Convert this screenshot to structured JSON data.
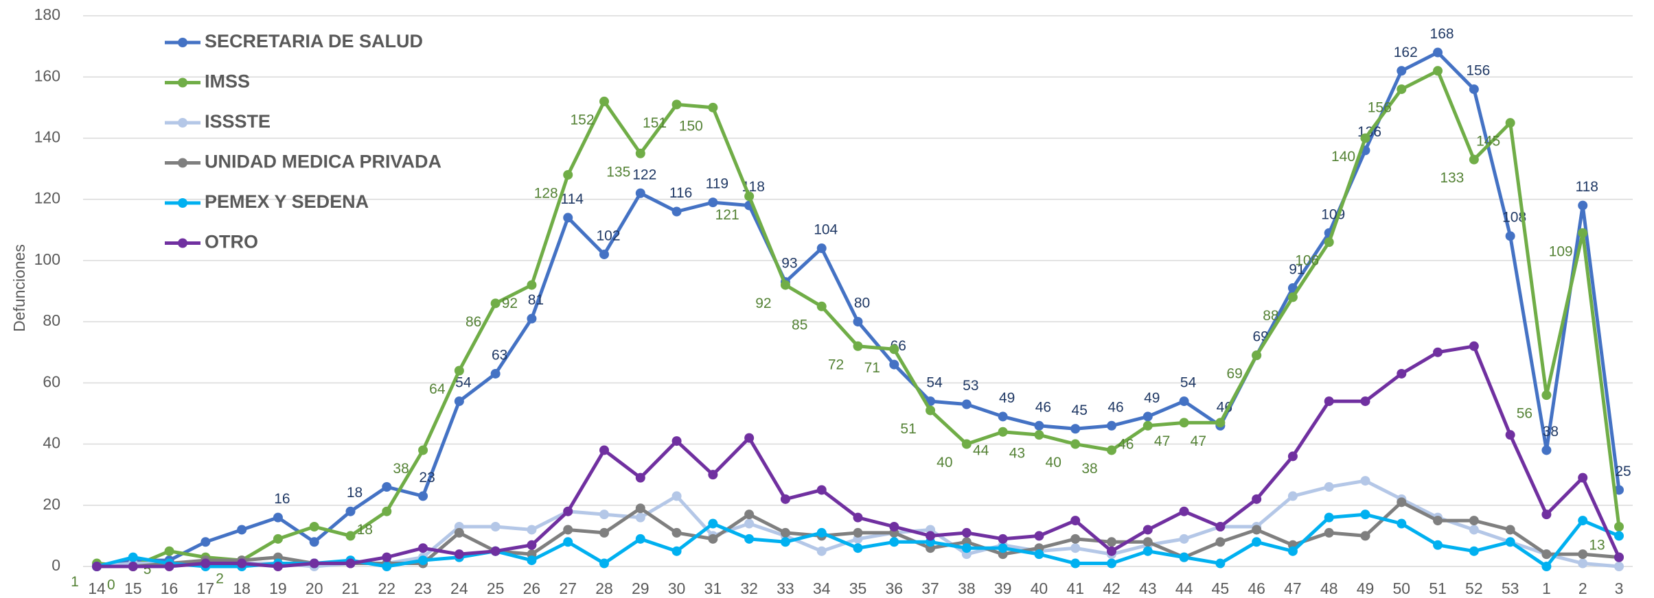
{
  "chart_data": {
    "type": "line",
    "y_label": "Defunciones",
    "categories": [
      "14",
      "15",
      "16",
      "17",
      "18",
      "19",
      "20",
      "21",
      "22",
      "23",
      "24",
      "25",
      "26",
      "27",
      "28",
      "29",
      "30",
      "31",
      "32",
      "33",
      "34",
      "35",
      "36",
      "37",
      "38",
      "39",
      "40",
      "41",
      "42",
      "43",
      "44",
      "45",
      "46",
      "47",
      "48",
      "49",
      "50",
      "51",
      "52",
      "53",
      "1",
      "2",
      "3"
    ],
    "ylim": [
      0,
      180
    ],
    "yticks": [
      0,
      20,
      40,
      60,
      80,
      100,
      120,
      140,
      160,
      180
    ],
    "grid": true,
    "legend": "upper left",
    "series": [
      {
        "name": "SECRETARIA DE SALUD",
        "color": "#4472c4",
        "values": [
          0,
          2,
          2,
          8,
          12,
          16,
          8,
          18,
          26,
          23,
          54,
          63,
          81,
          114,
          102,
          122,
          116,
          119,
          118,
          93,
          104,
          80,
          66,
          54,
          53,
          49,
          46,
          45,
          46,
          49,
          54,
          46,
          69,
          91,
          109,
          136,
          162,
          168,
          156,
          108,
          38,
          118,
          25
        ],
        "value_labels": [
          null,
          null,
          null,
          null,
          null,
          16,
          null,
          18,
          null,
          23,
          54,
          63,
          81,
          114,
          102,
          122,
          116,
          119,
          118,
          93,
          104,
          80,
          66,
          54,
          53,
          49,
          46,
          45,
          46,
          49,
          54,
          46,
          69,
          91,
          109,
          136,
          162,
          168,
          156,
          108,
          38,
          118,
          25
        ]
      },
      {
        "name": "IMSS",
        "color": "#70ad47",
        "values": [
          1,
          0,
          5,
          3,
          2,
          9,
          13,
          10,
          18,
          38,
          64,
          86,
          92,
          128,
          152,
          135,
          151,
          150,
          121,
          92,
          85,
          72,
          71,
          51,
          40,
          44,
          43,
          40,
          38,
          46,
          47,
          47,
          69,
          88,
          106,
          140,
          156,
          162,
          133,
          145,
          56,
          109,
          13
        ],
        "value_labels": [
          1,
          0,
          5,
          null,
          2,
          null,
          null,
          null,
          18,
          38,
          64,
          86,
          92,
          128,
          152,
          135,
          151,
          150,
          121,
          92,
          85,
          72,
          71,
          51,
          40,
          44,
          43,
          40,
          38,
          46,
          47,
          47,
          69,
          88,
          106,
          140,
          156,
          null,
          133,
          145,
          56,
          109,
          13
        ]
      },
      {
        "name": "ISSSTE",
        "color": "#b4c7e7",
        "values": [
          0,
          1,
          1,
          1,
          1,
          1,
          0,
          1,
          1,
          3,
          13,
          13,
          12,
          18,
          17,
          16,
          23,
          10,
          14,
          10,
          5,
          9,
          11,
          12,
          4,
          7,
          5,
          6,
          4,
          7,
          9,
          13,
          13,
          23,
          26,
          28,
          22,
          16,
          12,
          8,
          4,
          1,
          0
        ]
      },
      {
        "name": "UNIDAD MEDICA PRIVADA",
        "color": "#7f7f7f",
        "values": [
          0,
          0,
          1,
          2,
          2,
          3,
          1,
          1,
          1,
          1,
          11,
          5,
          4,
          12,
          11,
          19,
          11,
          9,
          17,
          11,
          10,
          11,
          11,
          6,
          8,
          4,
          6,
          9,
          8,
          8,
          3,
          8,
          12,
          7,
          11,
          10,
          21,
          15,
          15,
          12,
          4,
          4,
          3
        ]
      },
      {
        "name": "PEMEX Y SEDENA",
        "color": "#00b0f0",
        "values": [
          0,
          3,
          1,
          0,
          0,
          1,
          1,
          2,
          0,
          2,
          3,
          5,
          2,
          8,
          1,
          9,
          5,
          14,
          9,
          8,
          11,
          6,
          8,
          8,
          6,
          6,
          4,
          1,
          1,
          5,
          3,
          1,
          8,
          5,
          16,
          17,
          14,
          7,
          5,
          8,
          0,
          15,
          10
        ]
      },
      {
        "name": "OTRO",
        "color": "#7030a0",
        "values": [
          0,
          0,
          0,
          1,
          1,
          0,
          1,
          1,
          3,
          6,
          4,
          5,
          7,
          18,
          38,
          29,
          41,
          30,
          42,
          22,
          25,
          16,
          13,
          10,
          11,
          9,
          10,
          15,
          5,
          12,
          18,
          13,
          22,
          36,
          54,
          54,
          63,
          70,
          72,
          43,
          17,
          29,
          3
        ]
      }
    ]
  }
}
